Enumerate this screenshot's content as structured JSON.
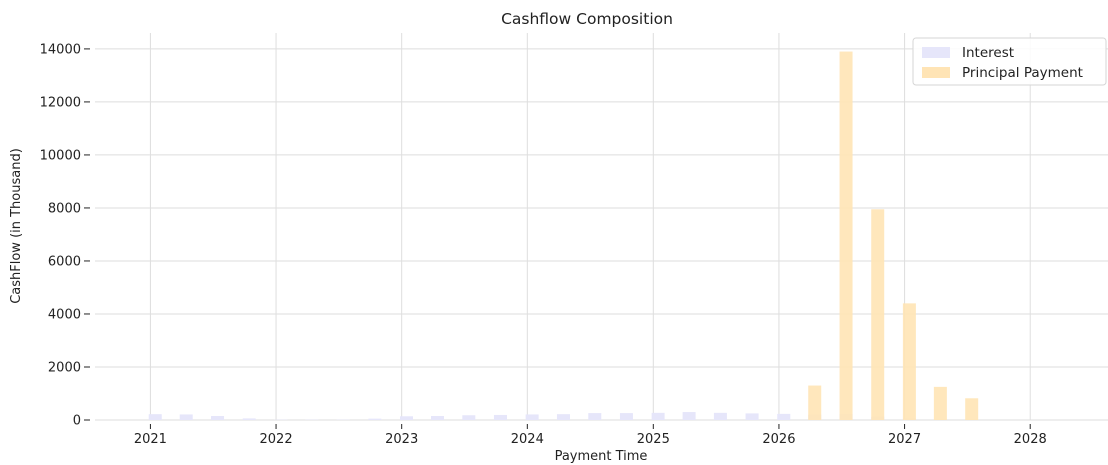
{
  "chart_data": {
    "type": "bar",
    "title": "Cashflow Composition",
    "xlabel": "Payment Time",
    "ylabel": "CashFlow (in Thousand)",
    "ylim": [
      0,
      14600
    ],
    "xlim": [
      "2020-07-24",
      "2028-08-14"
    ],
    "grid": true,
    "legend_position": "top-right",
    "y_ticks": [
      "0",
      "2000",
      "4000",
      "6000",
      "8000",
      "10000",
      "12000",
      "14000"
    ],
    "x_ticks": [
      "2021",
      "2022",
      "2023",
      "2024",
      "2025",
      "2026",
      "2027",
      "2028"
    ],
    "x": [
      "2021-01-15",
      "2021-04-15",
      "2021-07-15",
      "2021-10-15",
      "2022-01-15",
      "2022-04-15",
      "2022-07-15",
      "2022-10-15",
      "2023-01-15",
      "2023-04-15",
      "2023-07-15",
      "2023-10-15",
      "2024-01-15",
      "2024-04-15",
      "2024-07-15",
      "2024-10-15",
      "2025-01-15",
      "2025-04-15",
      "2025-07-15",
      "2025-10-15",
      "2026-01-15",
      "2026-04-15",
      "2026-07-15",
      "2026-10-15",
      "2027-01-15",
      "2027-04-15",
      "2027-07-15"
    ],
    "series": [
      {
        "name": "Interest",
        "color": "#e6e6fa",
        "values": [
          220,
          210,
          150,
          60,
          10,
          10,
          10,
          50,
          140,
          150,
          180,
          190,
          210,
          220,
          260,
          260,
          270,
          300,
          270,
          250,
          230,
          200,
          230,
          120,
          50,
          0,
          0
        ]
      },
      {
        "name": "Principal Payment",
        "color": "#ffe4b5",
        "values": [
          0,
          0,
          0,
          0,
          0,
          0,
          0,
          0,
          0,
          0,
          0,
          0,
          0,
          0,
          0,
          0,
          0,
          0,
          0,
          0,
          0,
          1300,
          13900,
          7950,
          4400,
          1250,
          820
        ]
      }
    ]
  }
}
